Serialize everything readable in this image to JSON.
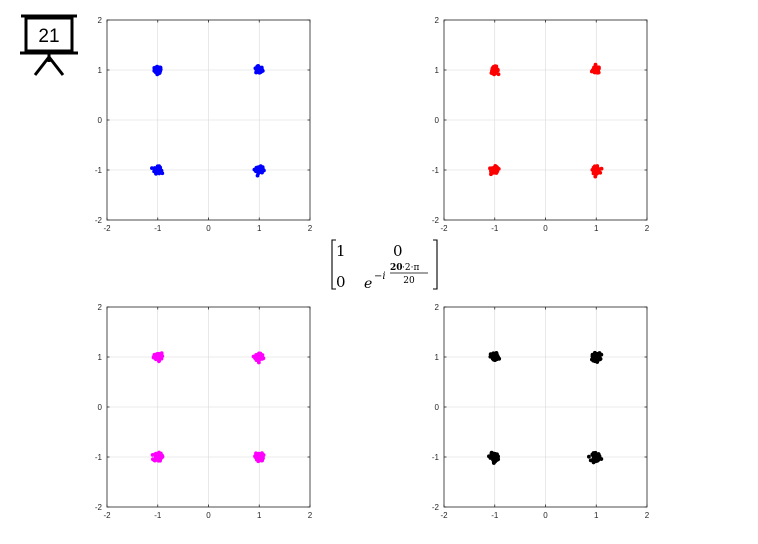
{
  "slide_number": "21",
  "matrix": {
    "r1c1": "1",
    "r1c2": "0",
    "r2c1": "0",
    "base": "e",
    "exp_prefix": "−i",
    "numerator_highlight": "20",
    "numerator_rest": "·2·π",
    "denominator": "20",
    "highlight_color": "#e00000"
  },
  "chart_data": [
    {
      "type": "scatter",
      "color": "#0000ff",
      "xlim": [
        -2,
        2
      ],
      "ylim": [
        -2,
        2
      ],
      "xticks": [
        "-2",
        "-1",
        "0",
        "1",
        "2"
      ],
      "yticks": [
        "-2",
        "-1",
        "0",
        "1",
        "2"
      ],
      "grid": true,
      "clusters": [
        {
          "x": -1,
          "y": 1
        },
        {
          "x": 1,
          "y": 1
        },
        {
          "x": -1,
          "y": -1
        },
        {
          "x": 1,
          "y": -1
        }
      ],
      "spread": 0.06
    },
    {
      "type": "scatter",
      "color": "#ff0000",
      "xlim": [
        -2,
        2
      ],
      "ylim": [
        -2,
        2
      ],
      "xticks": [
        "-2",
        "-1",
        "0",
        "1",
        "2"
      ],
      "yticks": [
        "-2",
        "-1",
        "0",
        "1",
        "2"
      ],
      "grid": true,
      "clusters": [
        {
          "x": -1,
          "y": 1
        },
        {
          "x": 1,
          "y": 1
        },
        {
          "x": -1,
          "y": -1
        },
        {
          "x": 1,
          "y": -1
        }
      ],
      "spread": 0.06
    },
    {
      "type": "scatter",
      "color": "#ff00ff",
      "xlim": [
        -2,
        2
      ],
      "ylim": [
        -2,
        2
      ],
      "xticks": [
        "-2",
        "-1",
        "0",
        "1",
        "2"
      ],
      "yticks": [
        "-2",
        "-1",
        "0",
        "1",
        "2"
      ],
      "grid": true,
      "clusters": [
        {
          "x": -1,
          "y": 1
        },
        {
          "x": 1,
          "y": 1
        },
        {
          "x": -1,
          "y": -1
        },
        {
          "x": 1,
          "y": -1
        }
      ],
      "spread": 0.07
    },
    {
      "type": "scatter",
      "color": "#000000",
      "xlim": [
        -2,
        2
      ],
      "ylim": [
        -2,
        2
      ],
      "xticks": [
        "-2",
        "-1",
        "0",
        "1",
        "2"
      ],
      "yticks": [
        "-2",
        "-1",
        "0",
        "1",
        "2"
      ],
      "grid": true,
      "clusters": [
        {
          "x": -1,
          "y": 1
        },
        {
          "x": 1,
          "y": 1
        },
        {
          "x": -1,
          "y": -1
        },
        {
          "x": 1,
          "y": -1
        }
      ],
      "spread": 0.07
    }
  ]
}
